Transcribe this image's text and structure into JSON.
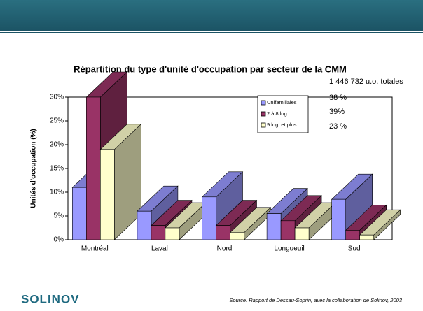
{
  "chart_data": {
    "type": "bar",
    "title": "Répartition du type d'unité d'occupation par secteur de la CMM",
    "y_label": "Unités d'occupation (%)",
    "categories": [
      "Montréal",
      "Laval",
      "Nord",
      "Longueuil",
      "Sud"
    ],
    "series": [
      {
        "name": "Unifamiliales",
        "color": "#9999ff",
        "values": [
          11,
          6,
          9,
          5.5,
          8.5
        ]
      },
      {
        "name": "2 à 8 log.",
        "color": "#993366",
        "values": [
          30,
          3,
          3,
          4,
          2
        ]
      },
      {
        "name": "9 log. et plus",
        "color": "#ffffcc",
        "values": [
          19,
          2.5,
          1.5,
          2.5,
          1
        ]
      }
    ],
    "ylim": [
      0,
      30
    ],
    "yticks": [
      {
        "value": 0,
        "label": "0%"
      },
      {
        "value": 5,
        "label": "5%"
      },
      {
        "value": 10,
        "label": "10%"
      },
      {
        "value": 15,
        "label": "15%"
      },
      {
        "value": 20,
        "label": "20%"
      },
      {
        "value": 25,
        "label": "25%"
      },
      {
        "value": 30,
        "label": "30%"
      }
    ],
    "grid": false,
    "legend": "upper right",
    "annotations": [
      "1 446 732 u.o. totales",
      "38 %",
      "39%",
      "23 %"
    ]
  },
  "footer": {
    "logo": "SOLINOV",
    "source": "Source: Rapport de Dessau-Soprin, avec la collaboration de Solinov, 2003"
  }
}
